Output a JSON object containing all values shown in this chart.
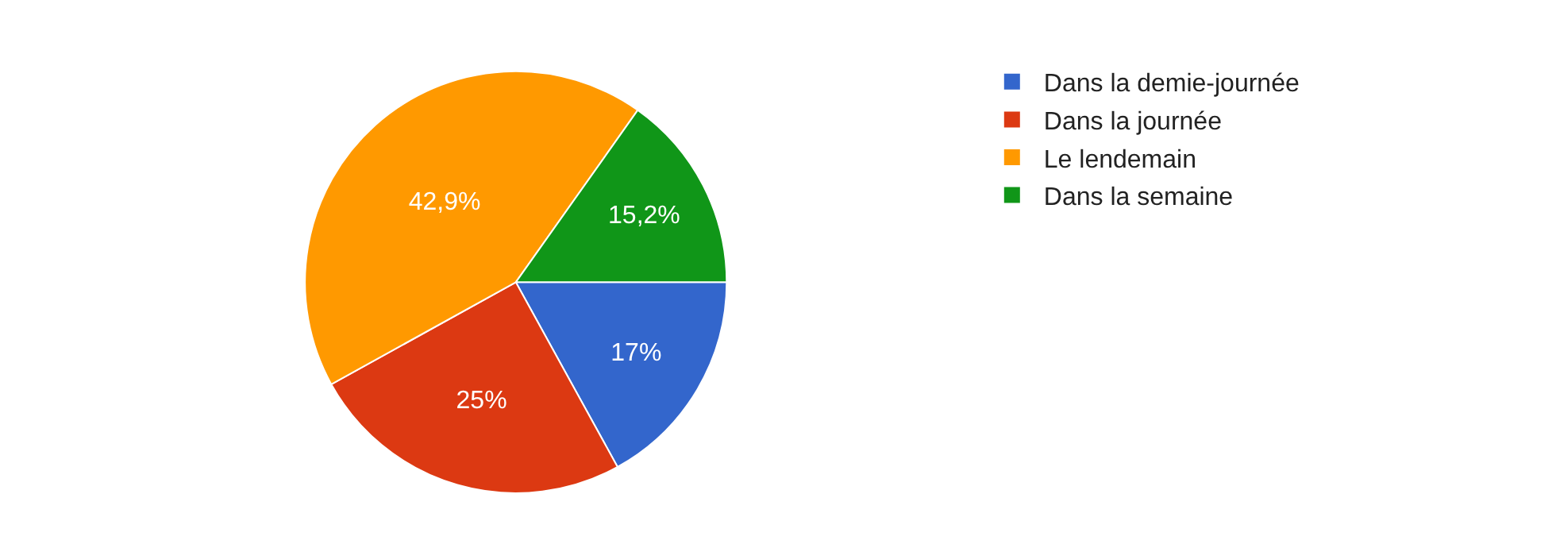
{
  "chart_data": {
    "type": "pie",
    "categories": [
      "Dans la demie-journée",
      "Dans la journée",
      "Le lendemain",
      "Dans la semaine"
    ],
    "values": [
      17,
      25,
      42.9,
      15.2
    ],
    "value_labels": [
      "17%",
      "25%",
      "42,9%",
      "15,2%"
    ],
    "colors": [
      "#3366cc",
      "#dc3912",
      "#ff9900",
      "#109618"
    ],
    "legend": "right"
  }
}
